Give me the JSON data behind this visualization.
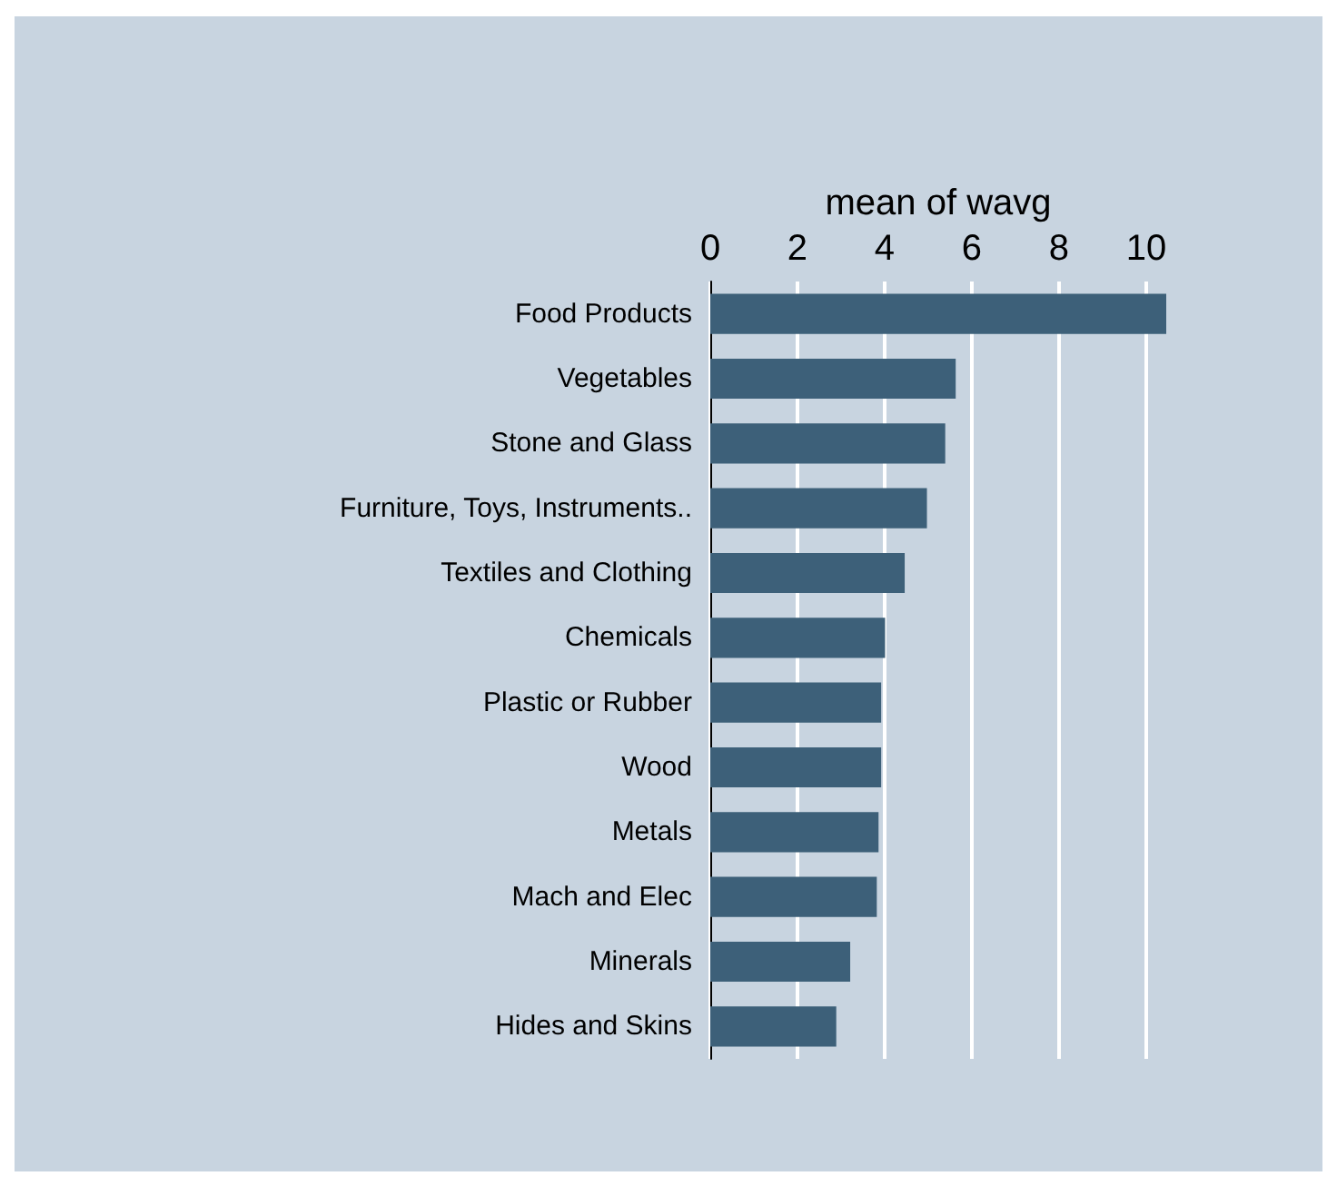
{
  "chart_data": {
    "type": "bar",
    "orientation": "horizontal",
    "xlabel": "mean of wavg",
    "categories": [
      "Food Products",
      "Vegetables",
      "Stone and Glass",
      "Furniture, Toys, Instruments..",
      "Textiles and Clothing",
      "Chemicals",
      "Plastic or Rubber",
      "Wood",
      "Metals",
      "Mach and Elec",
      "Minerals",
      "Hides and Skins"
    ],
    "values": [
      10.46,
      5.63,
      5.39,
      4.97,
      4.46,
      4.01,
      3.92,
      3.92,
      3.86,
      3.82,
      3.21,
      2.89
    ],
    "color": "#3d6079",
    "xlim": [
      0,
      10.46
    ],
    "xticks": [
      0,
      2,
      4,
      6,
      8,
      10
    ],
    "grid": "x"
  }
}
